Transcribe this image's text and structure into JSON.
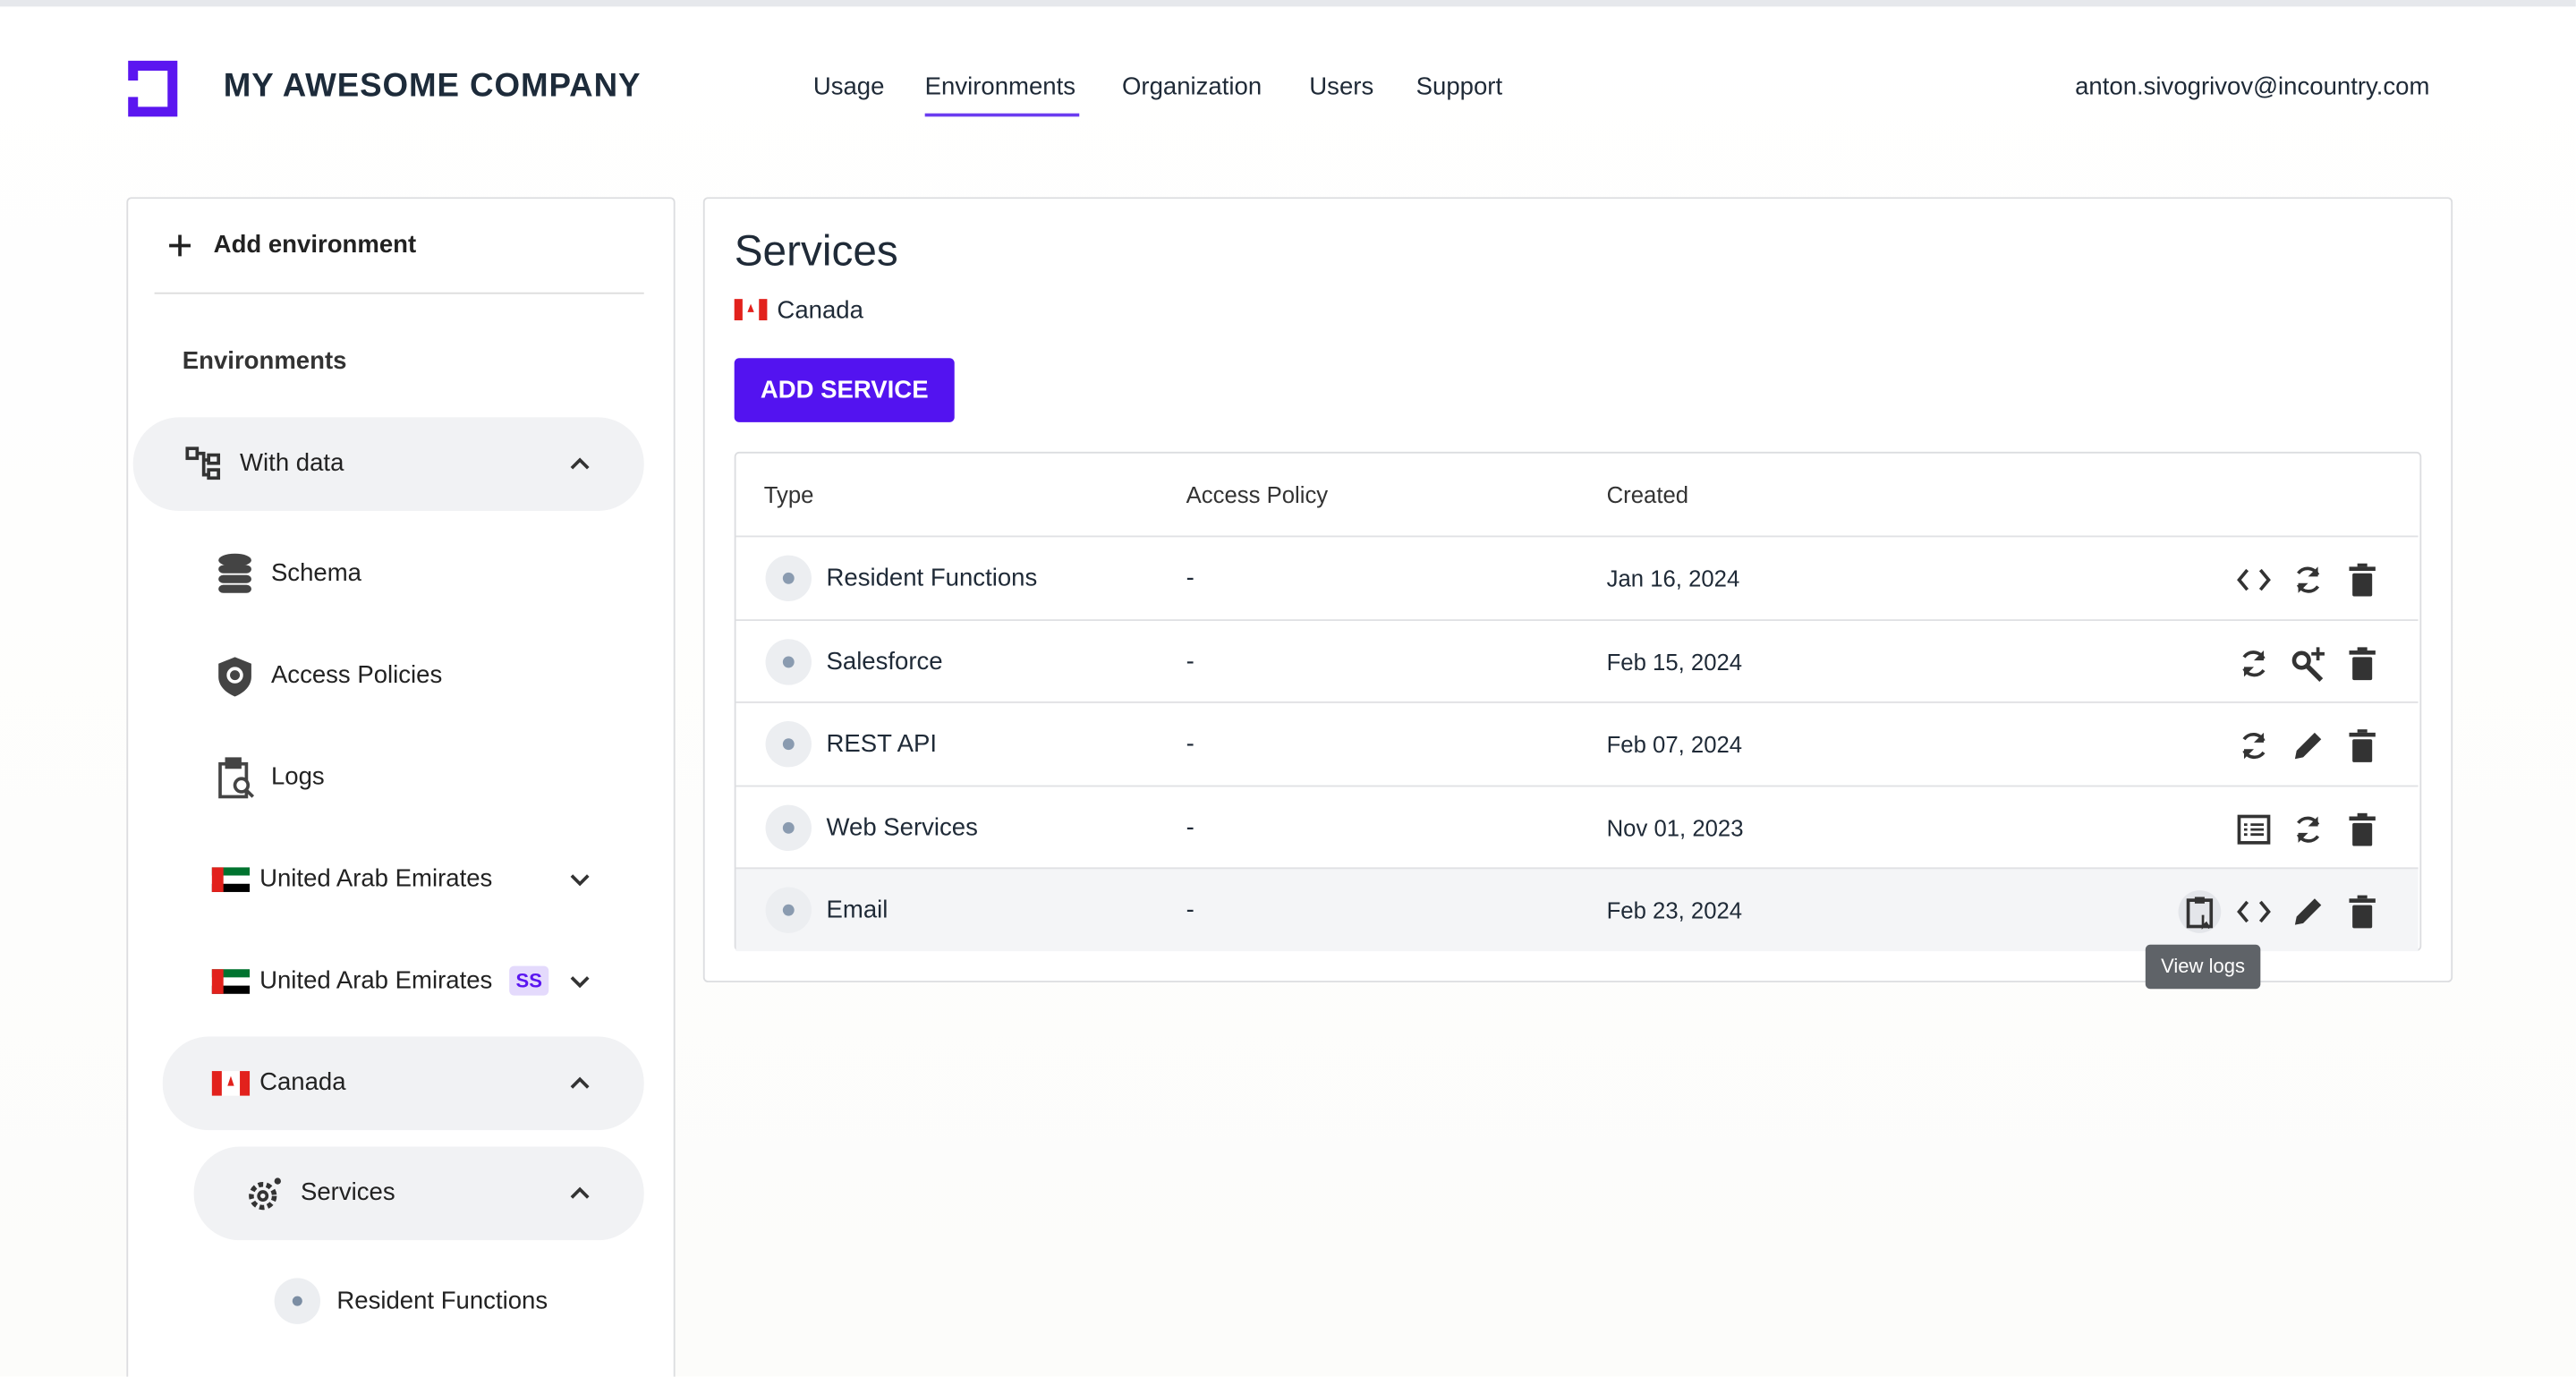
{
  "header": {
    "company": "MY AWESOME COMPANY",
    "nav": [
      "Usage",
      "Environments",
      "Organization",
      "Users",
      "Support"
    ],
    "user": "anton.sivogrivov@incountry.com"
  },
  "sidebar": {
    "add": "Add environment",
    "heading": "Environments",
    "with_data": "With data",
    "schema": "Schema",
    "access_policies": "Access Policies",
    "logs": "Logs",
    "uae": "United Arab Emirates",
    "uae_ss": "United Arab Emirates",
    "badge": "SS",
    "canada": "Canada",
    "services": "Services",
    "resident_functions": "Resident Functions"
  },
  "main": {
    "title": "Services",
    "country": "Canada",
    "button": "ADD SERVICE",
    "table": {
      "columns": [
        "Type",
        "Access Policy",
        "Created"
      ],
      "rows": [
        [
          "Resident Functions",
          "-",
          "Jan 16, 2024"
        ],
        [
          "Salesforce",
          "-",
          "Feb 15, 2024"
        ],
        [
          "REST API",
          "-",
          "Feb 07, 2024"
        ],
        [
          "Web Services",
          "-",
          "Nov 01, 2023"
        ],
        [
          "Email",
          "-",
          "Feb 23, 2024"
        ]
      ]
    },
    "tooltip": "View logs"
  }
}
